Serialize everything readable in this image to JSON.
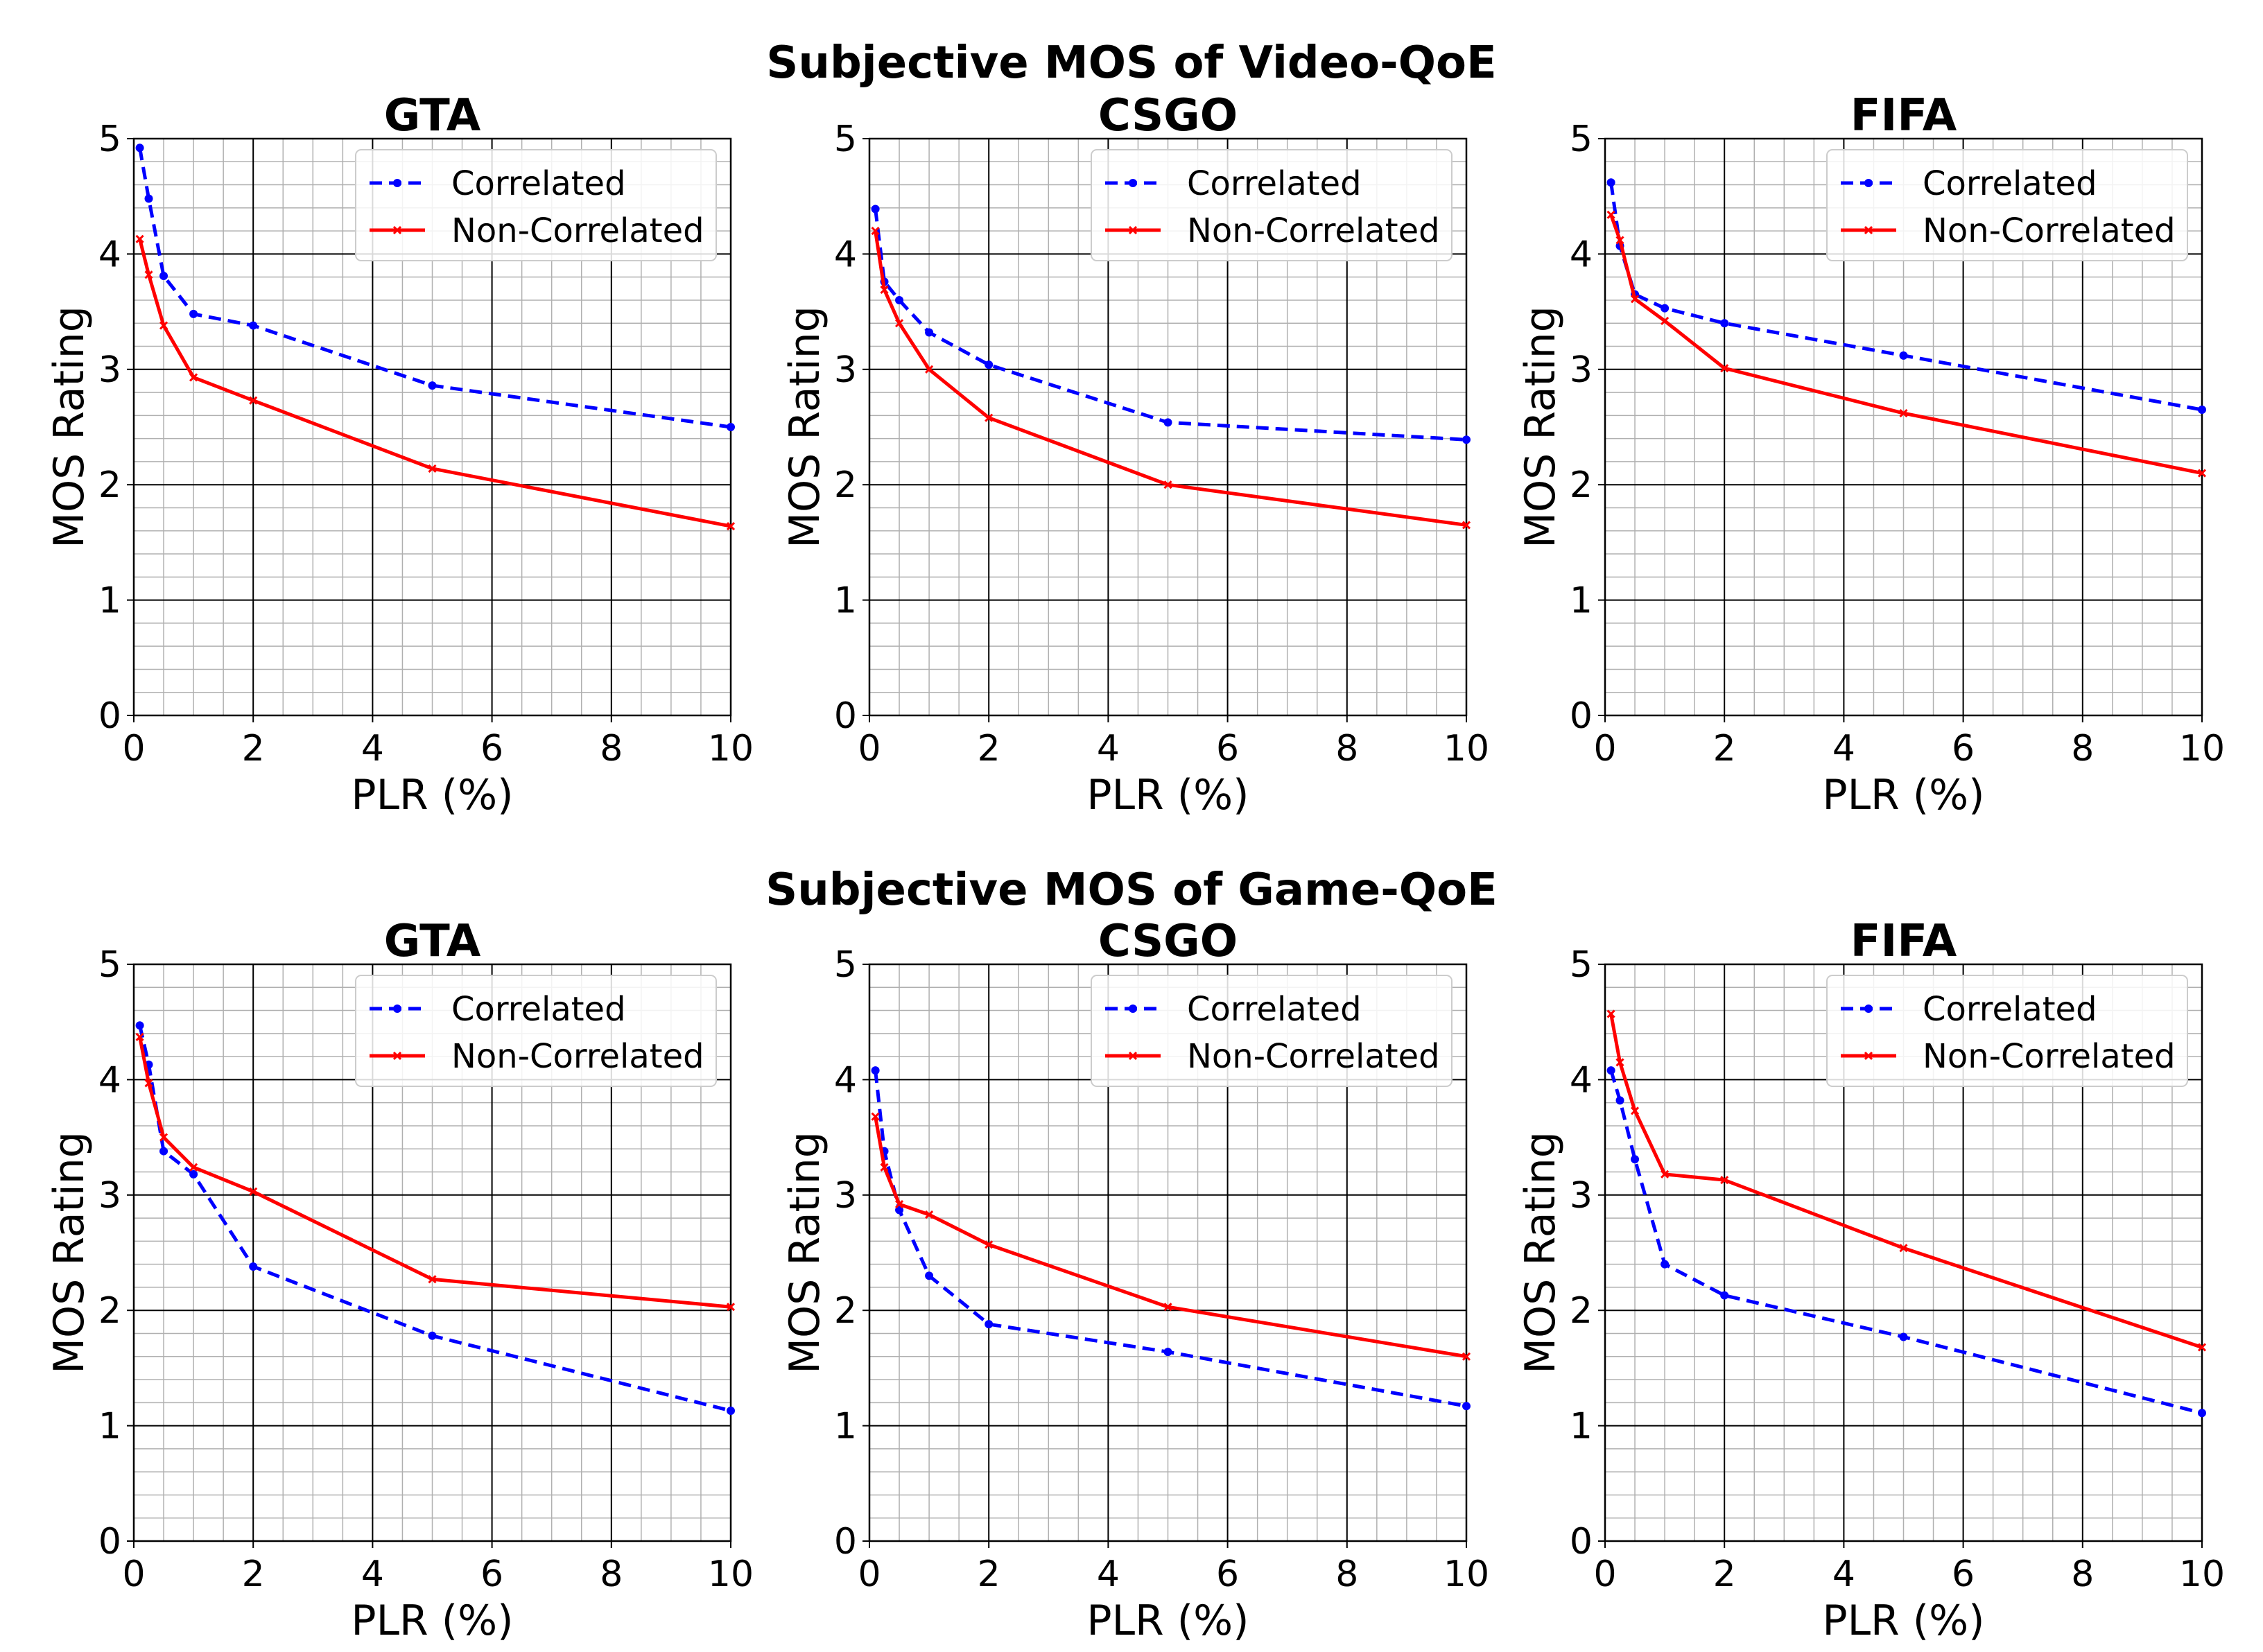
{
  "figure": {
    "row_titles": [
      "Subjective MOS of Video-QoE",
      "Subjective MOS of Game-QoE"
    ]
  },
  "colors": {
    "correlated": "#0000ff",
    "non_correlated": "#ff0000",
    "grid_major": "#000000",
    "grid_minor": "#b0b0b0"
  },
  "chart_data": [
    {
      "type": "line",
      "row": "Video-QoE",
      "title": "GTA",
      "xlabel": "PLR (%)",
      "ylabel": "MOS Rating",
      "xlim": [
        0,
        10
      ],
      "ylim": [
        0,
        5
      ],
      "xticks": [
        "0",
        "2",
        "4",
        "6",
        "8",
        "10"
      ],
      "yticks": [
        "0",
        "1",
        "2",
        "3",
        "4",
        "5"
      ],
      "grid": true,
      "legend": "top-right",
      "x": [
        0.1,
        0.25,
        0.5,
        1,
        2,
        5,
        10
      ],
      "series": [
        {
          "name": "Correlated",
          "style": "dashed",
          "marker": "dot",
          "values": [
            4.92,
            4.48,
            3.81,
            3.48,
            3.38,
            2.86,
            2.5
          ]
        },
        {
          "name": "Non-Correlated",
          "style": "solid",
          "marker": "x",
          "values": [
            4.13,
            3.82,
            3.38,
            2.93,
            2.73,
            2.14,
            1.64
          ]
        }
      ]
    },
    {
      "type": "line",
      "row": "Video-QoE",
      "title": "CSGO",
      "xlabel": "PLR (%)",
      "ylabel": "MOS Rating",
      "xlim": [
        0,
        10
      ],
      "ylim": [
        0,
        5
      ],
      "xticks": [
        "0",
        "2",
        "4",
        "6",
        "8",
        "10"
      ],
      "yticks": [
        "0",
        "1",
        "2",
        "3",
        "4",
        "5"
      ],
      "grid": true,
      "legend": "top-right",
      "x": [
        0.1,
        0.25,
        0.5,
        1,
        2,
        5,
        10
      ],
      "series": [
        {
          "name": "Correlated",
          "style": "dashed",
          "marker": "dot",
          "values": [
            4.39,
            3.76,
            3.6,
            3.32,
            3.04,
            2.54,
            2.39
          ]
        },
        {
          "name": "Non-Correlated",
          "style": "solid",
          "marker": "x",
          "values": [
            4.2,
            3.69,
            3.4,
            3.0,
            2.58,
            2.0,
            1.65
          ]
        }
      ]
    },
    {
      "type": "line",
      "row": "Video-QoE",
      "title": "FIFA",
      "xlabel": "PLR (%)",
      "ylabel": "MOS Rating",
      "xlim": [
        0,
        10
      ],
      "ylim": [
        0,
        5
      ],
      "xticks": [
        "0",
        "2",
        "4",
        "6",
        "8",
        "10"
      ],
      "yticks": [
        "0",
        "1",
        "2",
        "3",
        "4",
        "5"
      ],
      "grid": true,
      "legend": "top-right",
      "x": [
        0.1,
        0.25,
        0.5,
        1,
        2,
        5,
        10
      ],
      "series": [
        {
          "name": "Correlated",
          "style": "dashed",
          "marker": "dot",
          "values": [
            4.62,
            4.07,
            3.65,
            3.53,
            3.4,
            3.12,
            2.65
          ]
        },
        {
          "name": "Non-Correlated",
          "style": "solid",
          "marker": "x",
          "values": [
            4.34,
            4.12,
            3.61,
            3.42,
            3.01,
            2.62,
            2.1
          ]
        }
      ]
    },
    {
      "type": "line",
      "row": "Game-QoE",
      "title": "GTA",
      "xlabel": "PLR (%)",
      "ylabel": "MOS Rating",
      "xlim": [
        0,
        10
      ],
      "ylim": [
        0,
        5
      ],
      "xticks": [
        "0",
        "2",
        "4",
        "6",
        "8",
        "10"
      ],
      "yticks": [
        "0",
        "1",
        "2",
        "3",
        "4",
        "5"
      ],
      "grid": true,
      "legend": "top-right",
      "x": [
        0.1,
        0.25,
        0.5,
        1,
        2,
        5,
        10
      ],
      "series": [
        {
          "name": "Correlated",
          "style": "dashed",
          "marker": "dot",
          "values": [
            4.47,
            4.13,
            3.38,
            3.18,
            2.38,
            1.78,
            1.13
          ]
        },
        {
          "name": "Non-Correlated",
          "style": "solid",
          "marker": "x",
          "values": [
            4.37,
            3.97,
            3.5,
            3.24,
            3.03,
            2.27,
            2.03
          ]
        }
      ]
    },
    {
      "type": "line",
      "row": "Game-QoE",
      "title": "CSGO",
      "xlabel": "PLR (%)",
      "ylabel": "MOS Rating",
      "xlim": [
        0,
        10
      ],
      "ylim": [
        0,
        5
      ],
      "xticks": [
        "0",
        "2",
        "4",
        "6",
        "8",
        "10"
      ],
      "yticks": [
        "0",
        "1",
        "2",
        "3",
        "4",
        "5"
      ],
      "grid": true,
      "legend": "top-right",
      "x": [
        0.1,
        0.25,
        0.5,
        1,
        2,
        5,
        10
      ],
      "series": [
        {
          "name": "Correlated",
          "style": "dashed",
          "marker": "dot",
          "values": [
            4.08,
            3.38,
            2.87,
            2.3,
            1.88,
            1.64,
            1.17
          ]
        },
        {
          "name": "Non-Correlated",
          "style": "solid",
          "marker": "x",
          "values": [
            3.68,
            3.24,
            2.92,
            2.83,
            2.57,
            2.03,
            1.6
          ]
        }
      ]
    },
    {
      "type": "line",
      "row": "Game-QoE",
      "title": "FIFA",
      "xlabel": "PLR (%)",
      "ylabel": "MOS Rating",
      "xlim": [
        0,
        10
      ],
      "ylim": [
        0,
        5
      ],
      "xticks": [
        "0",
        "2",
        "4",
        "6",
        "8",
        "10"
      ],
      "yticks": [
        "0",
        "1",
        "2",
        "3",
        "4",
        "5"
      ],
      "grid": true,
      "legend": "top-right",
      "x": [
        0.1,
        0.25,
        0.5,
        1,
        2,
        5,
        10
      ],
      "series": [
        {
          "name": "Correlated",
          "style": "dashed",
          "marker": "dot",
          "values": [
            4.08,
            3.82,
            3.31,
            2.4,
            2.13,
            1.77,
            1.11
          ]
        },
        {
          "name": "Non-Correlated",
          "style": "solid",
          "marker": "x",
          "values": [
            4.57,
            4.15,
            3.73,
            3.18,
            3.13,
            2.54,
            1.68
          ]
        }
      ]
    }
  ]
}
